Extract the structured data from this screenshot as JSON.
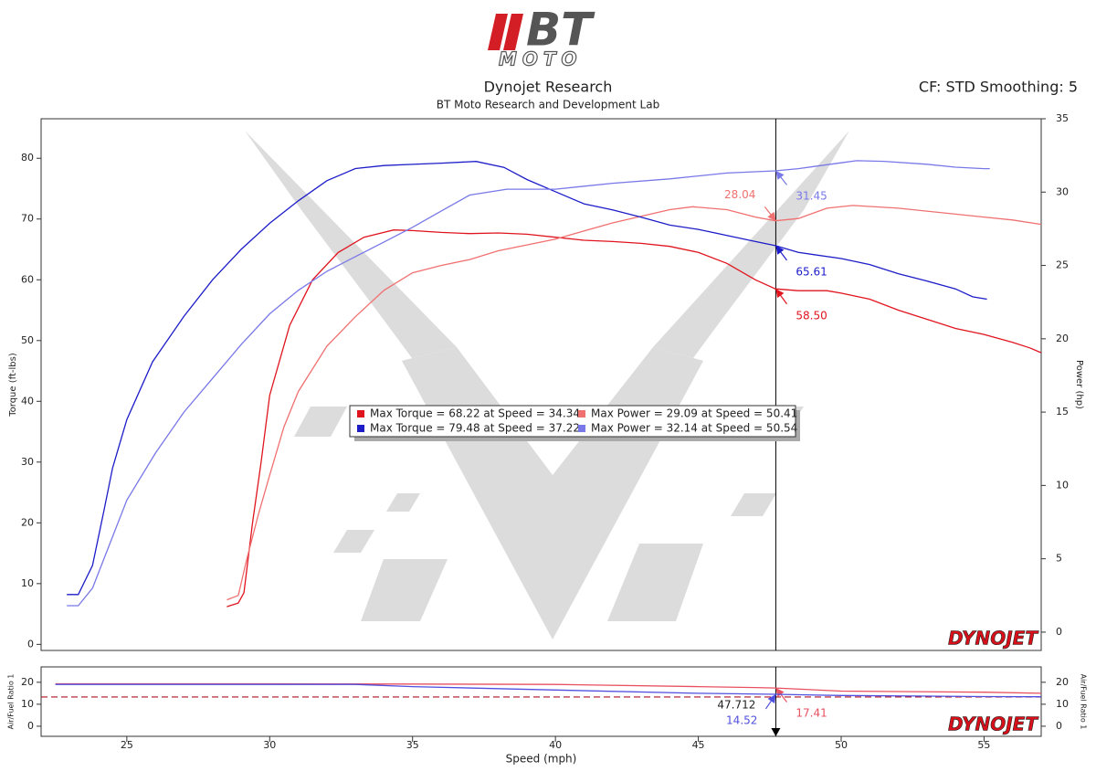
{
  "header": {
    "title": "Dynojet Research",
    "subtitle": "BT Moto Research and Development Lab",
    "settings": "CF: STD Smoothing: 5"
  },
  "logo": {
    "brand": "BT",
    "sub": "MOTO"
  },
  "chart_data": [
    {
      "type": "line",
      "y_label": "Torque (ft-lbs)",
      "y2_label": "Power (hp)",
      "watermark": "DYNOJET",
      "xlim": [
        22,
        57
      ],
      "ylim": [
        -1,
        86.5
      ],
      "yticks": [
        0,
        10,
        20,
        30,
        40,
        50,
        60,
        70,
        80
      ],
      "y2lim": [
        -1.25,
        35
      ],
      "y2ticks": [
        0,
        5,
        10,
        15,
        20,
        25,
        30,
        35
      ],
      "series": [
        {
          "color": "#e0141e",
          "axis": "y",
          "x": [
            28.5,
            28.9,
            29.1,
            29.4,
            29.7,
            30,
            30.7,
            31.5,
            32.4,
            33.3,
            34.34,
            35,
            36,
            37,
            38,
            39,
            40,
            41,
            42,
            43,
            44,
            45,
            46,
            47,
            47.7,
            48.5,
            49.5,
            50,
            51,
            52,
            53,
            54,
            55,
            56,
            56.6,
            57
          ],
          "values": [
            6.2,
            6.8,
            8.5,
            20,
            30,
            41,
            52.5,
            60,
            64.5,
            67,
            68.2,
            68.1,
            67.8,
            67.6,
            67.7,
            67.5,
            67,
            66.5,
            66.3,
            66,
            65.5,
            64.5,
            62.7,
            60,
            58.5,
            58.2,
            58.2,
            57.8,
            56.8,
            55,
            53.5,
            52,
            51,
            49.7,
            48.8,
            48
          ],
          "cursor_value": {
            "value": 58.5,
            "label": "58.50"
          }
        },
        {
          "color": "#f07070",
          "axis": "y2",
          "x": [
            28.5,
            28.9,
            29.2,
            29.6,
            30,
            30.5,
            31,
            32,
            33,
            34,
            35,
            36,
            37,
            38,
            40,
            42,
            44,
            44.8,
            46,
            47,
            47.7,
            48.5,
            49.5,
            50.41,
            52,
            54,
            55,
            56,
            57
          ],
          "values": [
            2.2,
            2.5,
            5,
            8,
            10.7,
            14,
            16.4,
            19.5,
            21.5,
            23.3,
            24.5,
            25,
            25.4,
            26,
            26.8,
            27.9,
            28.8,
            29,
            28.8,
            28.3,
            28.04,
            28.2,
            28.9,
            29.09,
            28.9,
            28.5,
            28.3,
            28.1,
            27.8
          ],
          "cursor_value": 28.04
        },
        {
          "color": "#1c1cc8",
          "axis": "y",
          "x": [
            22.9,
            23.3,
            23.8,
            24.2,
            24.5,
            25,
            25.9,
            27,
            28,
            29,
            30,
            31,
            32,
            33,
            34,
            35,
            36,
            37.22,
            38.2,
            39,
            40,
            41,
            42,
            43,
            44,
            45,
            46,
            47,
            47.7,
            48.5,
            50,
            51,
            52,
            53,
            54,
            54.6,
            55.1
          ],
          "values": [
            8.2,
            8.2,
            13,
            22,
            29,
            37,
            46.5,
            54,
            60,
            65,
            69.3,
            73,
            76.3,
            78.3,
            78.8,
            79,
            79.2,
            79.48,
            78.5,
            76.5,
            74.5,
            72.5,
            71.5,
            70.3,
            69,
            68.3,
            67.3,
            66.3,
            65.61,
            64.5,
            63.5,
            62.5,
            61,
            59.8,
            58.5,
            57.2,
            56.8
          ],
          "cursor_value": 65.61
        },
        {
          "color": "#7878e8",
          "axis": "y2",
          "x": [
            22.9,
            23.3,
            23.8,
            24.5,
            25,
            26,
            27,
            28,
            29,
            30,
            31,
            32,
            33,
            34,
            35,
            36,
            37,
            38.3,
            40,
            42,
            44,
            46,
            47.7,
            48.5,
            50,
            50.54,
            51.5,
            53,
            54,
            55,
            55.2
          ],
          "values": [
            1.8,
            1.8,
            3,
            6.5,
            9,
            12.2,
            15,
            17.3,
            19.6,
            21.7,
            23.3,
            24.6,
            25.6,
            26.6,
            27.6,
            28.7,
            29.8,
            30.2,
            30.2,
            30.6,
            30.9,
            31.3,
            31.45,
            31.6,
            32,
            32.14,
            32.1,
            31.9,
            31.7,
            31.6,
            31.6
          ],
          "cursor_value": 31.45
        }
      ],
      "legend": [
        {
          "text": "Max Torque = 68.22 at Speed = 34.34",
          "color": "#e0141e"
        },
        {
          "text": "Max Power = 29.09 at Speed = 50.41",
          "color": "#f07070"
        },
        {
          "text": "Max Torque = 79.48 at Speed = 37.22",
          "color": "#1c1cc8"
        },
        {
          "text": "Max Power = 32.14 at Speed = 50.54",
          "color": "#7878e8"
        }
      ]
    },
    {
      "type": "line",
      "y_label": "Air/Fuel Ratio 1",
      "y2_label": "Air/Fuel Ratio 1",
      "x_label": "Speed (mph)",
      "watermark": "DYNOJET",
      "xlim": [
        22,
        57
      ],
      "xticks": [
        25,
        30,
        35,
        40,
        45,
        50,
        55
      ],
      "ylim": [
        -4.6,
        27
      ],
      "yticks": [
        0,
        10,
        20
      ],
      "y2lim": [
        -4.6,
        27
      ],
      "y2ticks": [
        0,
        10,
        20
      ],
      "reference_line": 13.3,
      "cursor_x": 47.712,
      "series": [
        {
          "color": "#e85060",
          "axis": "y",
          "x": [
            22.5,
            30,
            35,
            40,
            45,
            47,
            47.7,
            50,
            55,
            57
          ],
          "values": [
            19.3,
            19.3,
            19.2,
            19,
            18,
            17.6,
            17.41,
            16,
            15.5,
            15
          ],
          "cursor_value": 17.41
        },
        {
          "color": "#5050e0",
          "axis": "y",
          "x": [
            22.5,
            30,
            33,
            35,
            40,
            45,
            47.7,
            50,
            55,
            57
          ],
          "values": [
            19,
            19,
            19,
            18,
            16.5,
            15,
            14.52,
            14,
            13.5,
            13.4
          ],
          "cursor_value": 14.52
        }
      ]
    }
  ]
}
